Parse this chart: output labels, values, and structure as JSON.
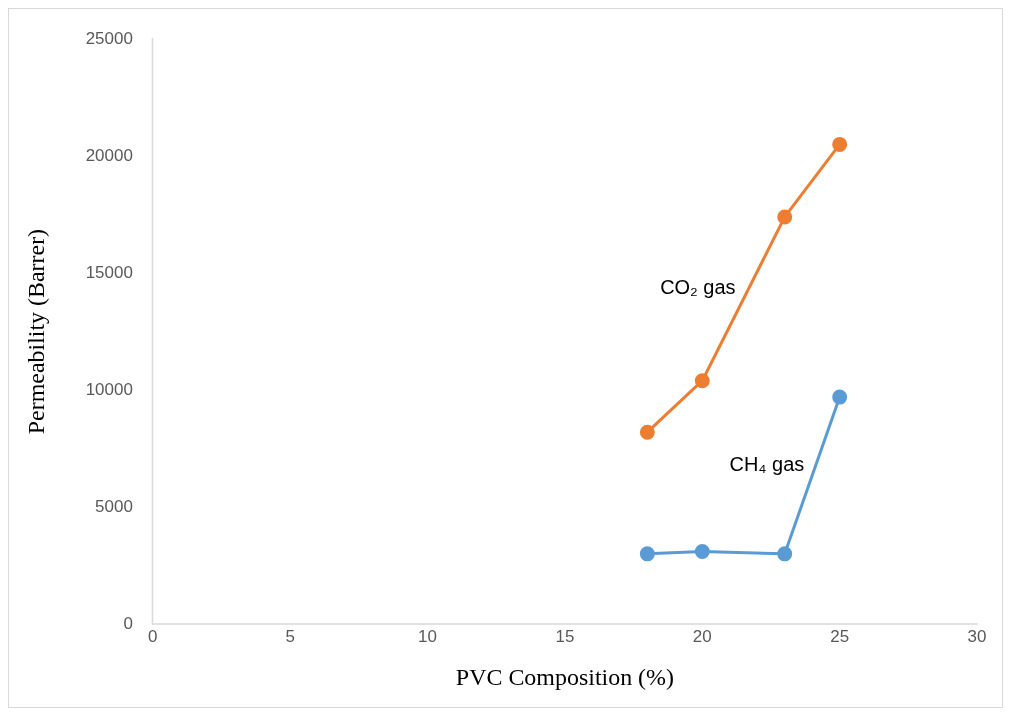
{
  "chart_data": {
    "type": "line",
    "xlabel": "PVC Composition (%)",
    "ylabel": "Permeability (Barrer)",
    "xlim": [
      0,
      30
    ],
    "xticks": [
      0,
      5,
      10,
      15,
      20,
      25,
      30
    ],
    "ylim": [
      0,
      25000
    ],
    "yticks": [
      0,
      5000,
      10000,
      15000,
      20000,
      25000
    ],
    "grid": false,
    "legend": false,
    "marker": "circle",
    "line_style": "solid",
    "series": [
      {
        "name": "CO₂ gas",
        "color": "#ed7d31",
        "x": [
          18,
          20,
          23,
          25
        ],
        "values": [
          8200,
          10400,
          17400,
          20500
        ]
      },
      {
        "name": "CH₄ gas",
        "color": "#5b9bd5",
        "x": [
          18,
          20,
          23,
          25
        ],
        "values": [
          3000,
          3100,
          3000,
          9700
        ]
      }
    ]
  }
}
